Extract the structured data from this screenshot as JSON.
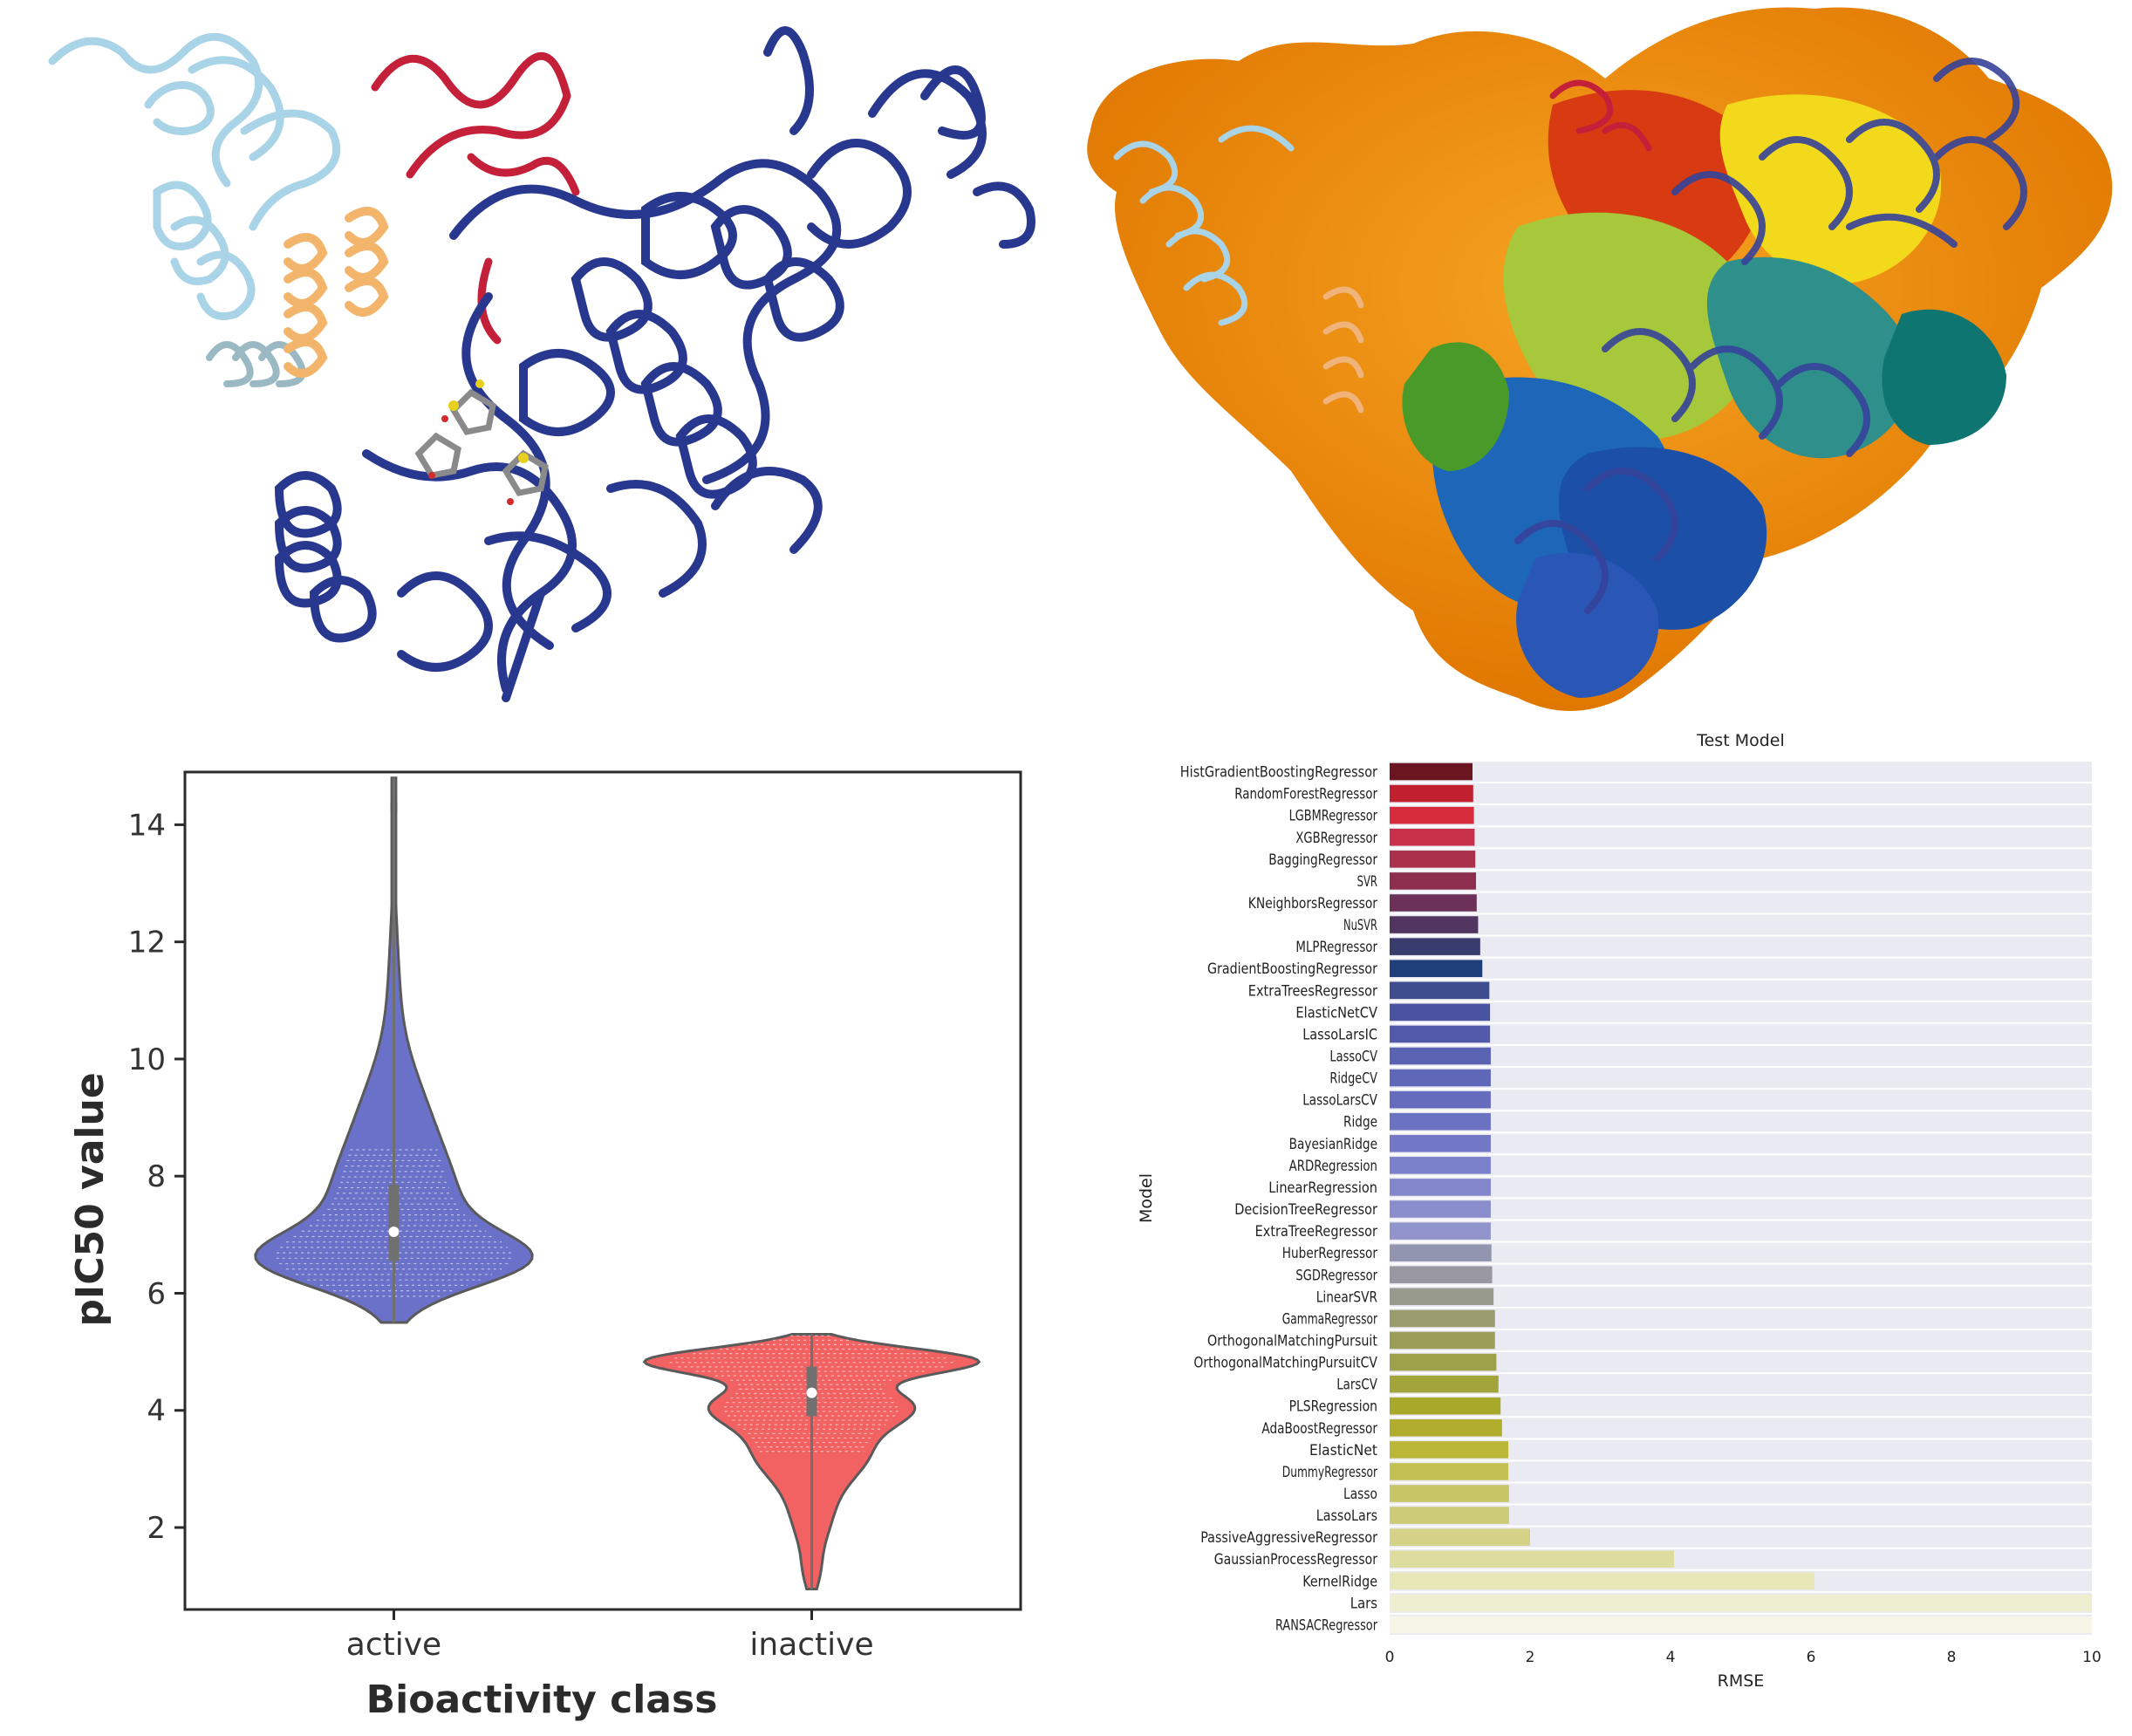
{
  "chart_data": [
    {
      "type": "violin",
      "title": "",
      "xlabel": "Bioactivity class",
      "ylabel": "pIC50 value",
      "categories": [
        "active",
        "inactive"
      ],
      "ylim": [
        0.6,
        14.9
      ],
      "yticks": [
        2,
        4,
        6,
        8,
        10,
        12,
        14
      ],
      "series": [
        {
          "name": "active",
          "color": "#6a71c8",
          "min": 5.5,
          "max": 14.8,
          "median": 7.05,
          "q1": 6.55,
          "q3": 7.85
        },
        {
          "name": "inactive",
          "color": "#f26262",
          "min": 0.95,
          "max": 5.3,
          "median": 4.3,
          "q1": 3.9,
          "q3": 4.75
        }
      ],
      "grid": false
    },
    {
      "type": "bar",
      "orientation": "horizontal",
      "title": "Test Model",
      "xlabel": "RMSE",
      "ylabel": "Model",
      "xlim": [
        0,
        10
      ],
      "xticks": [
        0,
        2,
        4,
        6,
        8,
        10
      ],
      "grid": true,
      "categories": [
        "HistGradientBoostingRegressor",
        "RandomForestRegressor",
        "LGBMRegressor",
        "XGBRegressor",
        "BaggingRegressor",
        "SVR",
        "KNeighborsRegressor",
        "NuSVR",
        "MLPRegressor",
        "GradientBoostingRegressor",
        "ExtraTreesRegressor",
        "ElasticNetCV",
        "LassoLarsIC",
        "LassoCV",
        "RidgeCV",
        "LassoLarsCV",
        "Ridge",
        "BayesianRidge",
        "ARDRegression",
        "LinearRegression",
        "DecisionTreeRegressor",
        "ExtraTreeRegressor",
        "HuberRegressor",
        "SGDRegressor",
        "LinearSVR",
        "GammaRegressor",
        "OrthogonalMatchingPursuit",
        "OrthogonalMatchingPursuitCV",
        "LarsCV",
        "PLSRegression",
        "AdaBoostRegressor",
        "ElasticNet",
        "DummyRegressor",
        "Lasso",
        "LassoLars",
        "PassiveAggressiveRegressor",
        "GaussianProcessRegressor",
        "KernelRidge",
        "Lars",
        "RANSACRegressor"
      ],
      "values": [
        1.18,
        1.19,
        1.2,
        1.21,
        1.22,
        1.23,
        1.24,
        1.26,
        1.29,
        1.32,
        1.42,
        1.43,
        1.43,
        1.44,
        1.44,
        1.44,
        1.44,
        1.44,
        1.44,
        1.44,
        1.44,
        1.44,
        1.45,
        1.46,
        1.48,
        1.5,
        1.5,
        1.52,
        1.55,
        1.58,
        1.6,
        1.69,
        1.69,
        1.7,
        1.7,
        2.0,
        4.05,
        6.05,
        10.0,
        10.0
      ],
      "colors": [
        "#6b1521",
        "#c1202f",
        "#d62c3c",
        "#c9314a",
        "#a8304a",
        "#8e2e4e",
        "#6c3158",
        "#523561",
        "#393d6e",
        "#1f3f7a",
        "#3f4c8e",
        "#4a53a0",
        "#5259aa",
        "#5a62b2",
        "#5f67b8",
        "#656cbd",
        "#6a72c1",
        "#7278c5",
        "#7a80c9",
        "#8287cb",
        "#898dcc",
        "#9094cb",
        "#9295b0",
        "#9897a2",
        "#999a8e",
        "#9a9c6e",
        "#9b9e58",
        "#9ea14a",
        "#a3a53a",
        "#a8a82a",
        "#b0ad2c",
        "#bcb837",
        "#c3c152",
        "#c8c566",
        "#cdca78",
        "#d5d287",
        "#dedd9f",
        "#e7e6b6",
        "#efeed0",
        "#f6f5e6"
      ]
    }
  ],
  "images": {
    "ribbon_description_icon": "protein-ribbon-structure",
    "surface_description_icon": "protein-surface-structure"
  }
}
